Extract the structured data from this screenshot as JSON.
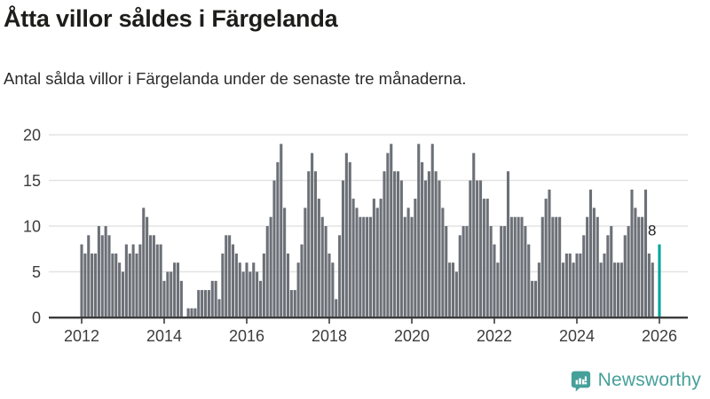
{
  "header": {
    "title": "Åtta villor såldes i Färgelanda",
    "subtitle": "Antal sålda villor i Färgelanda under de senaste tre månaderna."
  },
  "chart_data": {
    "type": "bar",
    "title": "Åtta villor såldes i Färgelanda",
    "subtitle": "Antal sålda villor i Färgelanda under de senaste tre månaderna.",
    "xlabel": "",
    "ylabel": "",
    "start_year": 2012,
    "start_month": 1,
    "values": [
      8,
      7,
      9,
      7,
      7,
      10,
      9,
      10,
      9,
      7,
      7,
      6,
      5,
      8,
      7,
      8,
      7,
      8,
      12,
      11,
      9,
      9,
      8,
      8,
      4,
      5,
      5,
      6,
      6,
      4,
      0,
      1,
      1,
      1,
      3,
      3,
      3,
      3,
      4,
      4,
      2,
      7,
      9,
      9,
      8,
      7,
      6,
      5,
      6,
      5,
      6,
      5,
      4,
      7,
      10,
      11,
      15,
      17,
      19,
      12,
      7,
      3,
      3,
      6,
      8,
      12,
      16,
      18,
      16,
      13,
      11,
      10,
      7,
      6,
      2,
      9,
      15,
      18,
      17,
      13,
      12,
      11,
      11,
      11,
      11,
      13,
      12,
      13,
      16,
      18,
      19,
      16,
      16,
      15,
      11,
      12,
      11,
      13,
      19,
      17,
      15,
      16,
      19,
      16,
      15,
      12,
      10,
      6,
      6,
      5,
      9,
      10,
      10,
      15,
      18,
      15,
      15,
      13,
      13,
      10,
      8,
      6,
      10,
      10,
      16,
      11,
      11,
      11,
      11,
      10,
      8,
      4,
      4,
      6,
      11,
      13,
      14,
      11,
      11,
      11,
      6,
      7,
      7,
      6,
      7,
      7,
      9,
      11,
      14,
      12,
      11,
      6,
      7,
      9,
      10,
      6,
      6,
      6,
      9,
      10,
      14,
      12,
      11,
      11,
      14,
      7,
      6,
      0,
      8
    ],
    "highlight_index": 168,
    "highlight_label": "8",
    "yticks": [
      0,
      5,
      10,
      15,
      20
    ],
    "xticks": [
      2012,
      2014,
      2016,
      2018,
      2020,
      2022,
      2024,
      2026
    ],
    "ylim": [
      0,
      20
    ],
    "grid": true,
    "legend": "none",
    "colors": {
      "bar": "#6c7077",
      "highlight": "#00a49c",
      "grid": "#e3e3e3",
      "axis": "#3c3c3c",
      "tick_label": "#3c3c3c",
      "annotation": "#222222"
    }
  },
  "footer": {
    "brand": "Newsworthy",
    "brand_color": "#46a09a"
  }
}
